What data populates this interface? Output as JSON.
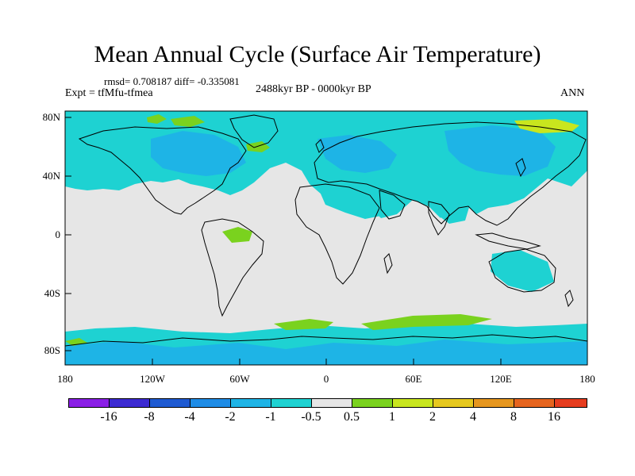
{
  "title": "Mean Annual Cycle (Surface Air Temperature)",
  "stats": "rmsd= 0.708187 diff= -0.335081",
  "experiment": "Expt = tfMfu-tfmea",
  "period": "2488kyr BP - 0000kyr BP",
  "season": "ANN",
  "lat_labels": [
    "80N",
    "40N",
    "0",
    "40S",
    "80S"
  ],
  "lon_labels": [
    "180",
    "120W",
    "60W",
    "0",
    "60E",
    "120E",
    "180"
  ],
  "colorbar": {
    "labels": [
      "-16",
      "-8",
      "-4",
      "-2",
      "-1",
      "-0.5",
      "0.5",
      "1",
      "2",
      "4",
      "8",
      "16"
    ],
    "colors": [
      "#8a1ee6",
      "#3c2ad2",
      "#1e5ad2",
      "#1e8ce6",
      "#1eb4e6",
      "#1ed2d2",
      "#e6e6e6",
      "#7ad21e",
      "#c8e61e",
      "#e6c81e",
      "#e6961e",
      "#e6641e",
      "#e63c1e"
    ]
  },
  "colors": {
    "neutral": "#e6e6e6",
    "light_cool": "#1ed2d2",
    "mid_cool": "#1eb4e6",
    "deep_cool": "#1e8ce6",
    "warm": "#7ad21e",
    "warm_yellow": "#c8e61e"
  }
}
